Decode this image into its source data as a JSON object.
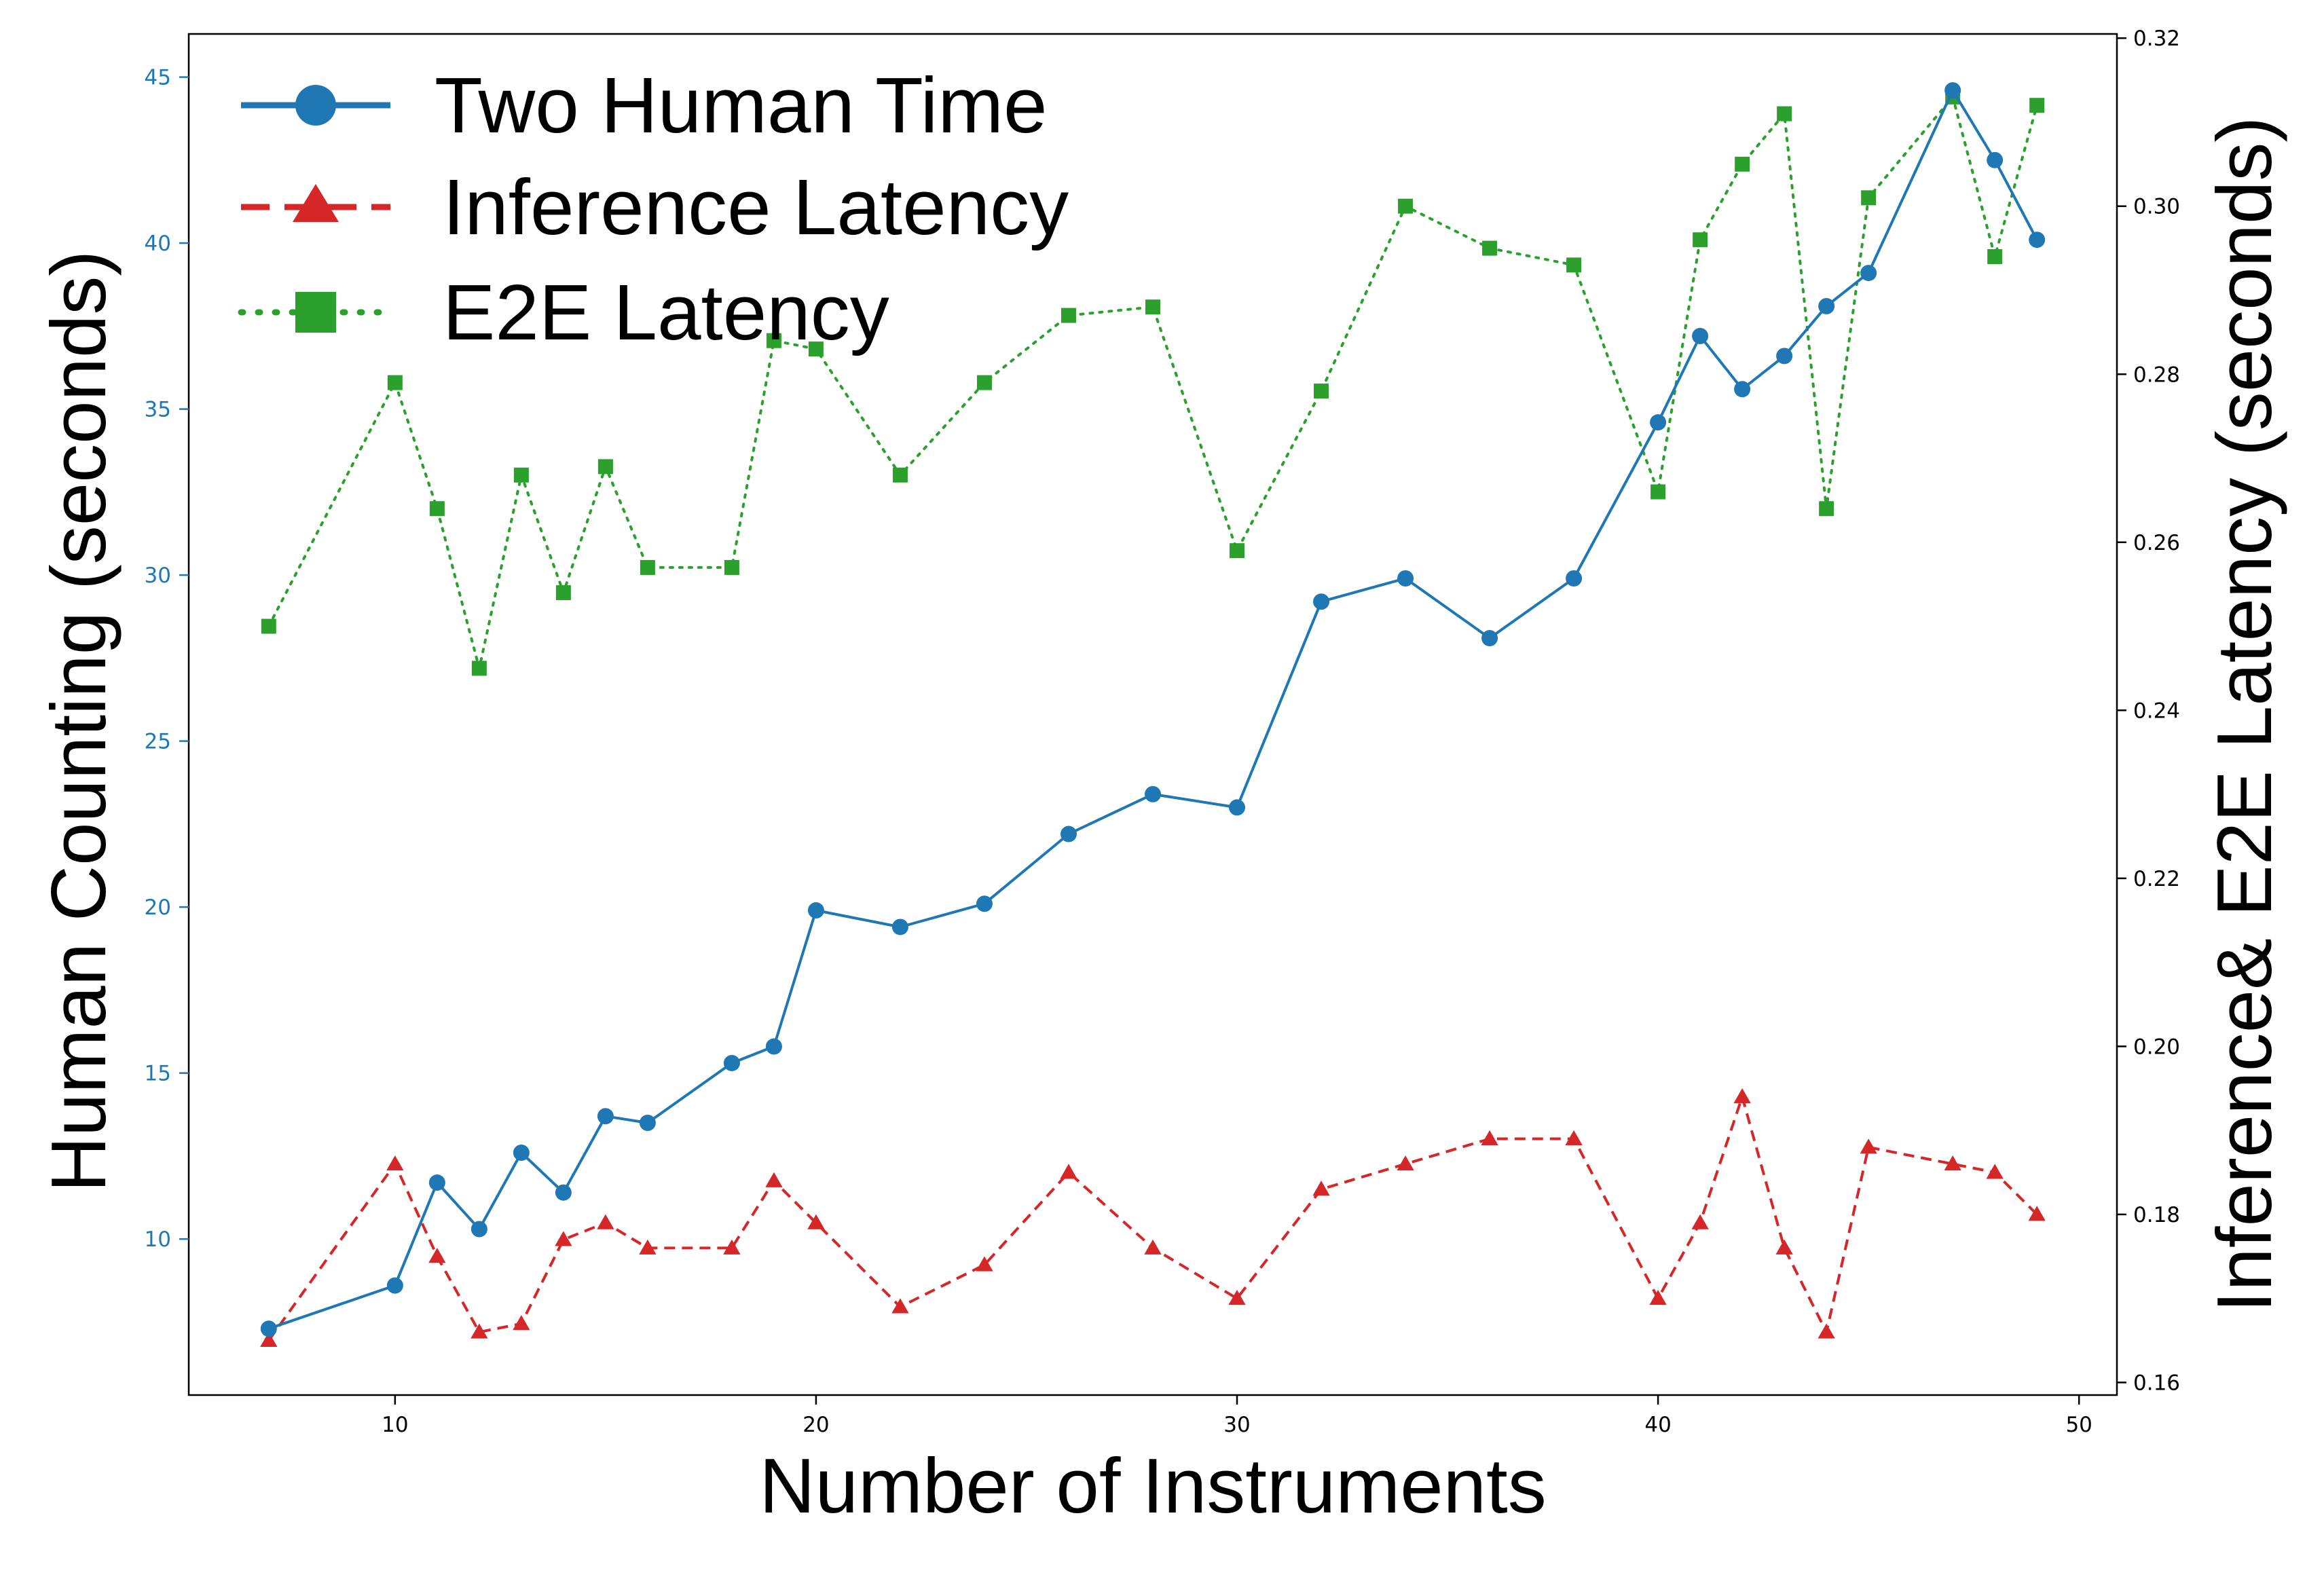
{
  "chart_data": {
    "type": "line",
    "xlabel": "Number of Instruments",
    "ylabel_left": "Human Counting (seconds)",
    "ylabel_right": "Inference& E2E Latency (seconds)",
    "xlim": [
      5.1,
      50.9
    ],
    "ylim_left": [
      5.3,
      46.3
    ],
    "ylim_right": [
      0.1585,
      0.3205
    ],
    "x_ticks": [
      10,
      20,
      30,
      40,
      50
    ],
    "y_left_ticks": [
      10,
      15,
      20,
      25,
      30,
      35,
      40,
      45
    ],
    "y_right_ticks": [
      0.16,
      0.18,
      0.2,
      0.22,
      0.24,
      0.26,
      0.28,
      0.3,
      0.32
    ],
    "y_right_tick_labels": [
      "0.16",
      "0.18",
      "0.20",
      "0.22",
      "0.24",
      "0.26",
      "0.28",
      "0.30",
      "0.32"
    ],
    "grid": false,
    "legend_position": "top-left",
    "series": [
      {
        "name": "Two Human Time",
        "axis": "left",
        "color": "#1f77b4",
        "linestyle": "solid",
        "marker": "circle",
        "x": [
          7,
          10,
          11,
          12,
          13,
          14,
          15,
          16,
          18,
          19,
          20,
          22,
          24,
          26,
          28,
          30,
          32,
          34,
          36,
          38,
          40,
          41,
          42,
          43,
          44,
          45,
          47,
          48,
          49
        ],
        "y": [
          7.3,
          8.6,
          11.7,
          10.3,
          12.6,
          11.4,
          13.7,
          13.5,
          15.3,
          15.8,
          19.9,
          19.4,
          20.1,
          22.2,
          23.4,
          23.0,
          29.2,
          29.9,
          28.1,
          29.9,
          34.6,
          37.2,
          35.6,
          36.6,
          38.1,
          39.1,
          44.6,
          42.5,
          40.1
        ]
      },
      {
        "name": "Inference Latency",
        "axis": "right",
        "color": "#d62728",
        "linestyle": "dashed",
        "marker": "triangle",
        "x": [
          7,
          10,
          11,
          12,
          13,
          14,
          15,
          16,
          18,
          19,
          20,
          22,
          24,
          26,
          28,
          30,
          32,
          34,
          36,
          38,
          40,
          41,
          42,
          43,
          44,
          45,
          47,
          48,
          49
        ],
        "y": [
          0.165,
          0.186,
          0.175,
          0.166,
          0.167,
          0.177,
          0.179,
          0.176,
          0.176,
          0.184,
          0.179,
          0.169,
          0.174,
          0.185,
          0.176,
          0.17,
          0.183,
          0.186,
          0.189,
          0.189,
          0.17,
          0.179,
          0.194,
          0.176,
          0.166,
          0.188,
          0.186,
          0.185,
          0.18
        ]
      },
      {
        "name": "E2E Latency",
        "axis": "right",
        "color": "#2ca02c",
        "linestyle": "dotted",
        "marker": "square",
        "x": [
          7,
          10,
          11,
          12,
          13,
          14,
          15,
          16,
          18,
          19,
          20,
          22,
          24,
          26,
          28,
          30,
          32,
          34,
          36,
          38,
          40,
          41,
          42,
          43,
          44,
          45,
          47,
          48,
          49
        ],
        "y": [
          0.25,
          0.279,
          0.264,
          0.245,
          0.268,
          0.254,
          0.269,
          0.257,
          0.257,
          0.284,
          0.283,
          0.268,
          0.279,
          0.287,
          0.288,
          0.259,
          0.278,
          0.3,
          0.295,
          0.293,
          0.266,
          0.296,
          0.305,
          0.311,
          0.264,
          0.301,
          0.313,
          0.294,
          0.312
        ]
      }
    ]
  }
}
